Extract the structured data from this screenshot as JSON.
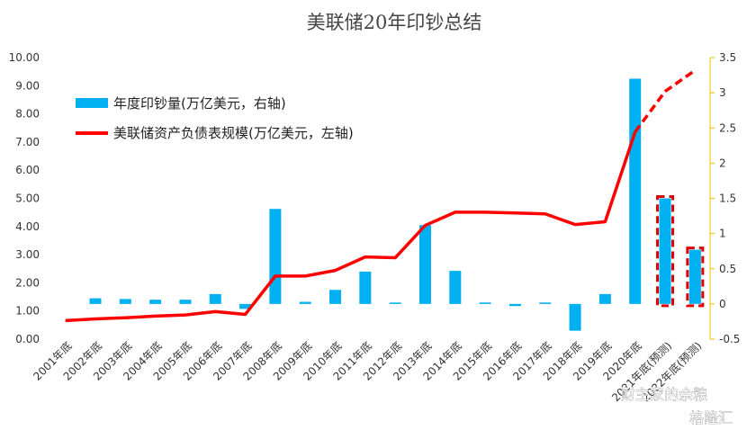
{
  "chart_data": {
    "type": "bar+line",
    "title": "美联储20年印钞总结",
    "categories": [
      "2001年底",
      "2002年底",
      "2003年底",
      "2004年底",
      "2005年底",
      "2006年底",
      "2007年底",
      "2008年底",
      "2009年底",
      "2010年底",
      "2011年底",
      "2012年底",
      "2013年底",
      "2014年底",
      "2015年底",
      "2016年底",
      "2017年底",
      "2018年底",
      "2019年底",
      "2020年底",
      "2021年底(预测)",
      "2022年底(预测)"
    ],
    "bar_series": {
      "name": "年度印钞量(万亿美元，右轴)",
      "axis": "right",
      "color": "#00B0F0",
      "values": [
        null,
        0.08,
        0.07,
        0.06,
        0.06,
        0.14,
        -0.07,
        1.35,
        0.03,
        0.2,
        0.46,
        0.02,
        1.12,
        0.47,
        0.02,
        -0.03,
        0.02,
        -0.38,
        0.14,
        3.2,
        1.5,
        0.77
      ],
      "highlighted": [
        "2021年底(预测)",
        "2022年底(预测)"
      ]
    },
    "line_series": {
      "name": "美联储资产负债表规模(万亿美元，左轴)",
      "axis": "left",
      "color": "#FF0000",
      "values": [
        0.66,
        0.72,
        0.76,
        0.82,
        0.86,
        0.98,
        0.88,
        2.24,
        2.24,
        2.44,
        2.92,
        2.89,
        4.04,
        4.51,
        4.51,
        4.48,
        4.45,
        4.07,
        4.17,
        7.36,
        8.8,
        9.55
      ],
      "dashed_from": "2020年底"
    },
    "y_left": {
      "min": 0,
      "max": 10,
      "step": 1,
      "ticks": [
        "0.00",
        "1.00",
        "2.00",
        "3.00",
        "4.00",
        "5.00",
        "6.00",
        "7.00",
        "8.00",
        "9.00",
        "10.00"
      ]
    },
    "y_right": {
      "min": -0.5,
      "max": 3.5,
      "step": 0.5,
      "ticks": [
        "-0.5",
        "0",
        "0.5",
        "1",
        "1.5",
        "2",
        "2.5",
        "3",
        "3.5"
      ]
    },
    "grid": false,
    "legend_position": "top-left",
    "colors": {
      "right_axis": "#E8C200",
      "highlight_box": "#E00000"
    }
  },
  "watermark": {
    "text1": "财主家的余粮",
    "text2": "格隆汇"
  }
}
